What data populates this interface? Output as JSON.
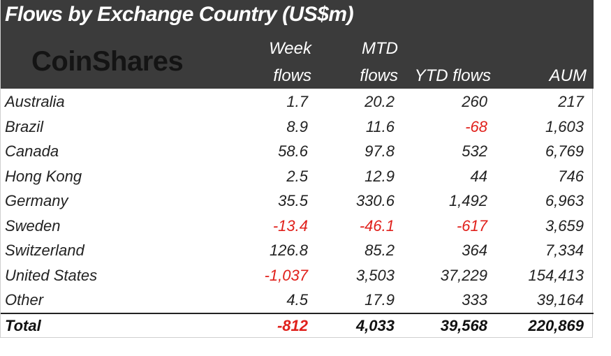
{
  "title": "Flows by Exchange Country (US$m)",
  "logo_text": "CoinShares",
  "columns": {
    "week_line1": "Week",
    "week_line2": "flows",
    "mtd_line1": "MTD",
    "mtd_line2": "flows",
    "ytd": "YTD flows",
    "aum": "AUM"
  },
  "rows": [
    {
      "country": "Australia",
      "week": "1.7",
      "mtd": "20.2",
      "ytd": "260",
      "aum": "217"
    },
    {
      "country": "Brazil",
      "week": "8.9",
      "mtd": "11.6",
      "ytd": "-68",
      "aum": "1,603"
    },
    {
      "country": "Canada",
      "week": "58.6",
      "mtd": "97.8",
      "ytd": "532",
      "aum": "6,769"
    },
    {
      "country": "Hong Kong",
      "week": "2.5",
      "mtd": "12.9",
      "ytd": "44",
      "aum": "746"
    },
    {
      "country": "Germany",
      "week": "35.5",
      "mtd": "330.6",
      "ytd": "1,492",
      "aum": "6,963"
    },
    {
      "country": "Sweden",
      "week": "-13.4",
      "mtd": "-46.1",
      "ytd": "-617",
      "aum": "3,659"
    },
    {
      "country": "Switzerland",
      "week": "126.8",
      "mtd": "85.2",
      "ytd": "364",
      "aum": "7,334"
    },
    {
      "country": "United States",
      "week": "-1,037",
      "mtd": "3,503",
      "ytd": "37,229",
      "aum": "154,413"
    },
    {
      "country": "Other",
      "week": "4.5",
      "mtd": "17.9",
      "ytd": "333",
      "aum": "39,164"
    }
  ],
  "total": {
    "label": "Total",
    "week": "-812",
    "mtd": "4,033",
    "ytd": "39,568",
    "aum": "220,869"
  },
  "colors": {
    "header_bg": "#3b3b3b",
    "negative": "#e0201b"
  }
}
